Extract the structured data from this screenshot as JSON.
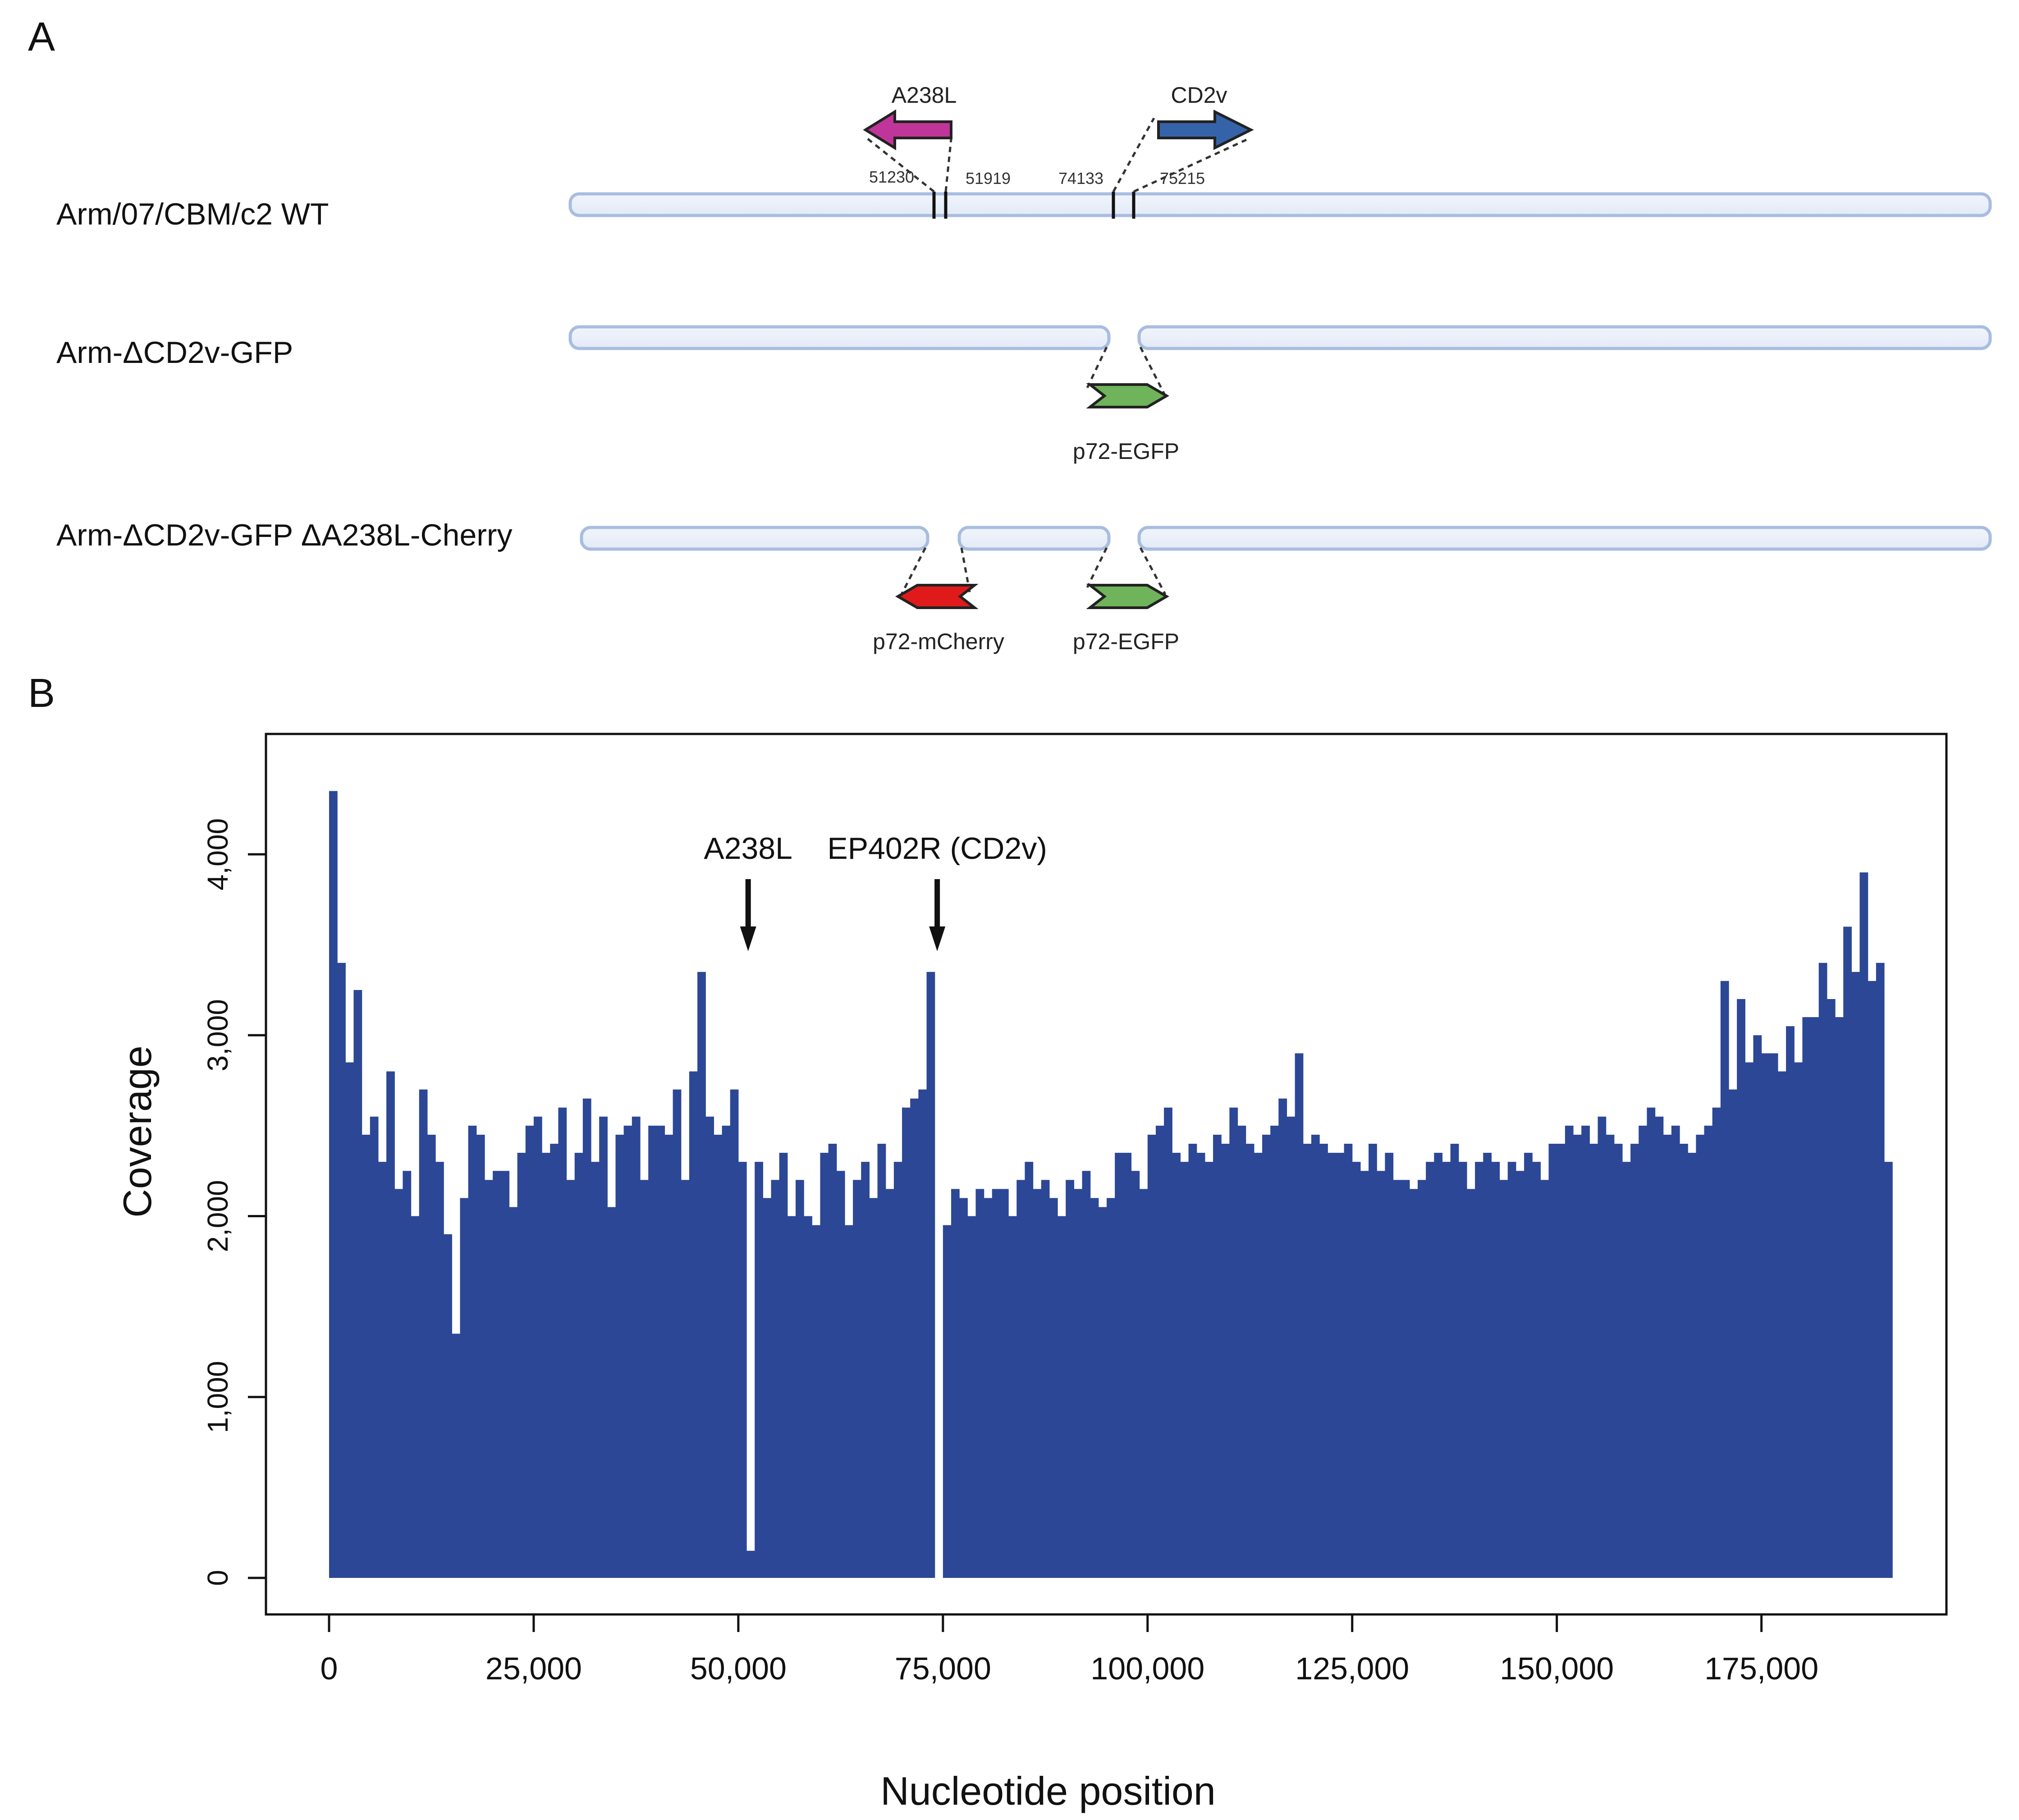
{
  "panel_a": {
    "label": "A",
    "constructs": [
      {
        "id": "wt",
        "label": "Arm/07/CBM/c2 WT"
      },
      {
        "id": "dcd2v",
        "label": "Arm-ΔCD2v-GFP"
      },
      {
        "id": "double",
        "label": "Arm-ΔCD2v-GFP ΔA238L-Cherry"
      }
    ],
    "genes": [
      {
        "name": "A238L",
        "start": "51230",
        "end": "51919",
        "color": "#c0359a",
        "direction": "left"
      },
      {
        "name": "CD2v",
        "start": "74133",
        "end": "75215",
        "color": "#3563aa",
        "direction": "right"
      }
    ],
    "cassettes": [
      {
        "label": "p72-EGFP",
        "color": "#6fb35a"
      },
      {
        "label": "p72-EGFP",
        "color": "#6fb35a"
      },
      {
        "label": "p72-mCherry",
        "color": "#e01a1a"
      }
    ],
    "genome_color": "#e8eef8",
    "genome_stroke": "#a8bde0"
  },
  "panel_b": {
    "label": "B",
    "annotations": [
      {
        "label": "A238L",
        "position": 51200
      },
      {
        "label": "EP402R (CD2v)",
        "position": 74300
      }
    ]
  },
  "chart_data": {
    "type": "bar",
    "title": "",
    "xlabel": "Nucleotide position",
    "ylabel": "Coverage",
    "xlim": [
      0,
      190000
    ],
    "ylim": [
      0,
      4400
    ],
    "x_ticks": [
      0,
      25000,
      50000,
      75000,
      100000,
      125000,
      150000,
      175000
    ],
    "x_tick_labels": [
      "0",
      "25,000",
      "50,000",
      "75,000",
      "100,000",
      "125,000",
      "150,000",
      "175,000"
    ],
    "y_ticks": [
      0,
      1000,
      2000,
      3000,
      4000
    ],
    "y_tick_labels": [
      "0",
      "1,000",
      "2,000",
      "3,000",
      "4,000"
    ],
    "bar_color": "#2c4795",
    "bin_width": 1000,
    "x": [
      0,
      1000,
      2000,
      3000,
      4000,
      5000,
      6000,
      7000,
      8000,
      9000,
      10000,
      11000,
      12000,
      13000,
      14000,
      15000,
      16000,
      17000,
      18000,
      19000,
      20000,
      21000,
      22000,
      23000,
      24000,
      25000,
      26000,
      27000,
      28000,
      29000,
      30000,
      31000,
      32000,
      33000,
      34000,
      35000,
      36000,
      37000,
      38000,
      39000,
      40000,
      41000,
      42000,
      43000,
      44000,
      45000,
      46000,
      47000,
      48000,
      49000,
      50000,
      51000,
      52000,
      53000,
      54000,
      55000,
      56000,
      57000,
      58000,
      59000,
      60000,
      61000,
      62000,
      63000,
      64000,
      65000,
      66000,
      67000,
      68000,
      69000,
      70000,
      71000,
      72000,
      73000,
      74000,
      75000,
      76000,
      77000,
      78000,
      79000,
      80000,
      81000,
      82000,
      83000,
      84000,
      85000,
      86000,
      87000,
      88000,
      89000,
      90000,
      91000,
      92000,
      93000,
      94000,
      95000,
      96000,
      97000,
      98000,
      99000,
      100000,
      101000,
      102000,
      103000,
      104000,
      105000,
      106000,
      107000,
      108000,
      109000,
      110000,
      111000,
      112000,
      113000,
      114000,
      115000,
      116000,
      117000,
      118000,
      119000,
      120000,
      121000,
      122000,
      123000,
      124000,
      125000,
      126000,
      127000,
      128000,
      129000,
      130000,
      131000,
      132000,
      133000,
      134000,
      135000,
      136000,
      137000,
      138000,
      139000,
      140000,
      141000,
      142000,
      143000,
      144000,
      145000,
      146000,
      147000,
      148000,
      149000,
      150000,
      151000,
      152000,
      153000,
      154000,
      155000,
      156000,
      157000,
      158000,
      159000,
      160000,
      161000,
      162000,
      163000,
      164000,
      165000,
      166000,
      167000,
      168000,
      169000,
      170000,
      171000,
      172000,
      173000,
      174000,
      175000,
      176000,
      177000,
      178000,
      179000,
      180000,
      181000,
      182000,
      183000,
      184000,
      185000,
      186000,
      187000,
      188000,
      189000,
      190000
    ],
    "values": [
      4350,
      3400,
      2850,
      3250,
      2450,
      2550,
      2300,
      2800,
      2150,
      2250,
      2000,
      2700,
      2450,
      2300,
      1900,
      1350,
      2100,
      2500,
      2450,
      2200,
      2250,
      2250,
      2050,
      2350,
      2500,
      2550,
      2350,
      2400,
      2600,
      2200,
      2350,
      2650,
      2300,
      2550,
      2050,
      2450,
      2500,
      2550,
      2200,
      2500,
      2500,
      2450,
      2700,
      2200,
      2800,
      3350,
      2550,
      2450,
      2500,
      2700,
      2300,
      150,
      2300,
      2100,
      2200,
      2350,
      2000,
      2200,
      2000,
      1950,
      2350,
      2400,
      2250,
      1950,
      2200,
      2300,
      2100,
      2400,
      2150,
      2300,
      2600,
      2650,
      2700,
      3350,
      0,
      1950,
      2150,
      2100,
      2000,
      2150,
      2100,
      2150,
      2150,
      2000,
      2200,
      2300,
      2150,
      2200,
      2100,
      2000,
      2200,
      2150,
      2250,
      2100,
      2050,
      2100,
      2350,
      2350,
      2250,
      2150,
      2450,
      2500,
      2600,
      2350,
      2300,
      2400,
      2350,
      2300,
      2450,
      2400,
      2600,
      2500,
      2400,
      2350,
      2450,
      2500,
      2650,
      2550,
      2900,
      2400,
      2450,
      2400,
      2350,
      2350,
      2400,
      2300,
      2250,
      2400,
      2250,
      2350,
      2200,
      2200,
      2150,
      2200,
      2300,
      2350,
      2300,
      2400,
      2300,
      2150,
      2300,
      2350,
      2300,
      2200,
      2300,
      2250,
      2350,
      2300,
      2200,
      2400,
      2400,
      2500,
      2450,
      2500,
      2400,
      2550,
      2450,
      2400,
      2300,
      2400,
      2500,
      2600,
      2550,
      2450,
      2500,
      2400,
      2350,
      2450,
      2500,
      2600,
      3300,
      2700,
      3200,
      2850,
      3000,
      2900,
      2900,
      2800,
      3050,
      2850,
      3100,
      3100,
      3400,
      3200,
      3100,
      3600,
      3350,
      3900,
      3300,
      3400,
      2300
    ]
  }
}
